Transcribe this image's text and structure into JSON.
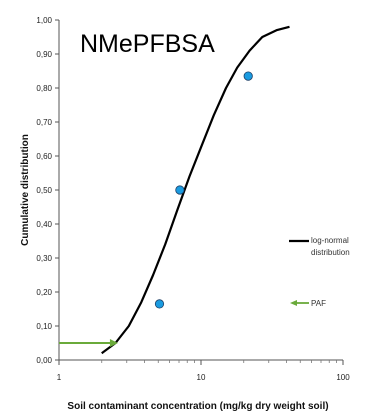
{
  "chart_data": {
    "type": "line",
    "title": "NMePFBSA",
    "xlabel": "Soil contaminant concentration (mg/kg dry weight soil)",
    "ylabel": "Cumulative distribution",
    "x_scale": "log",
    "xlim": [
      1,
      100
    ],
    "ylim": [
      0,
      1
    ],
    "x_ticks": [
      "1",
      "10",
      "100"
    ],
    "y_ticks": [
      "0,00",
      "0,10",
      "0,20",
      "0,30",
      "0,40",
      "0,50",
      "0,60",
      "0,70",
      "0,80",
      "0,90",
      "1,00"
    ],
    "series": [
      {
        "name": "log-normal distribution",
        "kind": "line",
        "color": "#000000",
        "x": [
          2.0,
          2.5,
          3.1,
          3.8,
          4.6,
          5.6,
          6.8,
          8.3,
          10.1,
          12.3,
          15.0,
          18.0,
          22.0,
          27.0,
          34.0,
          42.0
        ],
        "y": [
          0.02,
          0.05,
          0.1,
          0.17,
          0.25,
          0.34,
          0.44,
          0.54,
          0.63,
          0.72,
          0.8,
          0.86,
          0.91,
          0.95,
          0.97,
          0.98
        ]
      },
      {
        "kind": "scatter",
        "color": "#1a9be0",
        "x": [
          5.1,
          7.1,
          21.5
        ],
        "y": [
          0.165,
          0.5,
          0.835
        ]
      }
    ],
    "annotations": [
      {
        "label": "PAF",
        "kind": "arrow",
        "color": "#6aaa3a",
        "x": 2.6,
        "y": 0.05
      }
    ],
    "legend": [
      {
        "label": "log-normal distribution",
        "kind": "line",
        "color": "#000000"
      },
      {
        "label": "PAF",
        "kind": "arrow",
        "color": "#6aaa3a"
      }
    ],
    "legend_position": "right",
    "grid": false
  }
}
